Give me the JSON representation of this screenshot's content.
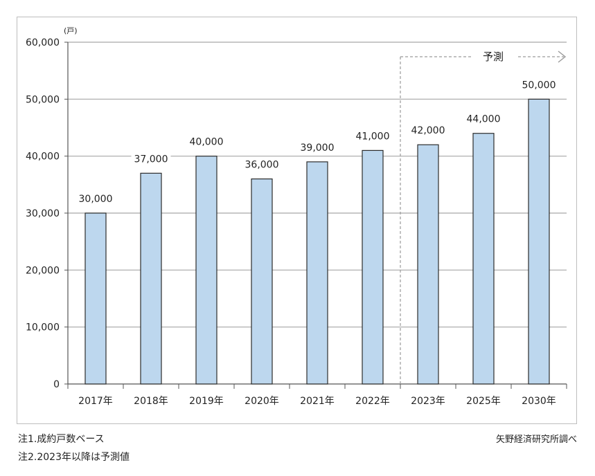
{
  "chart_data": {
    "type": "bar",
    "unit_label": "(戸)",
    "categories": [
      "2017年",
      "2018年",
      "2019年",
      "2020年",
      "2021年",
      "2022年",
      "2023年",
      "2025年",
      "2030年"
    ],
    "values": [
      30000,
      37000,
      40000,
      36000,
      39000,
      41000,
      42000,
      44000,
      50000
    ],
    "value_labels": [
      "30,000",
      "37,000",
      "40,000",
      "36,000",
      "39,000",
      "41,000",
      "42,000",
      "44,000",
      "50,000"
    ],
    "ylim": [
      0,
      60000
    ],
    "yticks": [
      0,
      10000,
      20000,
      30000,
      40000,
      50000,
      60000
    ],
    "ytick_labels": [
      "0",
      "10,000",
      "20,000",
      "30,000",
      "40,000",
      "50,000",
      "60,000"
    ],
    "grid": true,
    "forecast_label": "予測",
    "forecast_from_category": "2023年",
    "bar_color": "#bdd7ee",
    "bar_border_color": "#2b2b2b",
    "grid_color": "#a6a6a6",
    "forecast_line_color": "#9a9a9a"
  },
  "notes": {
    "note1": "注1.成約戸数ベース",
    "note2": "注2.2023年以降は予測値",
    "source": "矢野経済研究所調べ"
  }
}
